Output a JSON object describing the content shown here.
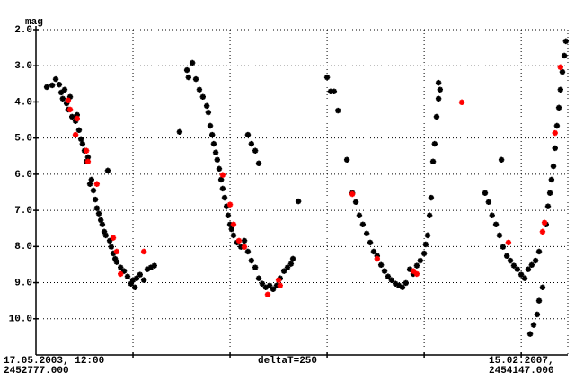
{
  "chart_data": {
    "type": "scatter",
    "y_label": "mag",
    "annotations": [
      "17.05.2003, 12:00",
      "2452777.000",
      "deltaT=250",
      "15.02.2007,",
      "2454147.000"
    ],
    "xlim": [
      2452777,
      2454147
    ],
    "xticks": [
      2453027,
      2453277,
      2453527,
      2453777,
      2454027
    ],
    "ylim": [
      11,
      2
    ],
    "yticks": [
      {
        "value": 2,
        "label": "2.0"
      },
      {
        "value": 3,
        "label": "3.0"
      },
      {
        "value": 4,
        "label": "4.0"
      },
      {
        "value": 5,
        "label": "5.0"
      },
      {
        "value": 6,
        "label": "6.0"
      },
      {
        "value": 7,
        "label": "7.0"
      },
      {
        "value": 8,
        "label": "8.0"
      },
      {
        "value": 9,
        "label": "9.0"
      },
      {
        "value": 10,
        "label": "10.0"
      }
    ],
    "grid": true,
    "series": [
      {
        "color": "#000000",
        "x": [
          2452805,
          2452819,
          2452828,
          2452837,
          2452842,
          2452846,
          2452851,
          2452856,
          2452860,
          2452865,
          2452870,
          2452879,
          2452883,
          2452888,
          2452893,
          2452897,
          2452902,
          2452907,
          2452911,
          2452916,
          2452920,
          2452925,
          2452930,
          2452934,
          2452939,
          2452944,
          2452948,
          2452953,
          2452957,
          2452962,
          2452967,
          2452971,
          2452976,
          2452981,
          2452985,
          2452995,
          2453004,
          2453013,
          2453022,
          2453027,
          2453032,
          2453036,
          2453045,
          2453055,
          2453064,
          2453073,
          2453082,
          2453147,
          2453166,
          2453170,
          2453180,
          2453189,
          2453198,
          2453207,
          2453217,
          2453221,
          2453226,
          2453231,
          2453235,
          2453240,
          2453244,
          2453249,
          2453254,
          2453258,
          2453263,
          2453268,
          2453272,
          2453277,
          2453281,
          2453286,
          2453295,
          2453305,
          2453314,
          2453323,
          2453332,
          2453342,
          2453351,
          2453323,
          2453332,
          2453342,
          2453351,
          2453360,
          2453369,
          2453379,
          2453388,
          2453397,
          2453406,
          2453416,
          2453425,
          2453434,
          2453439,
          2453453,
          2453527,
          2453536,
          2453545,
          2453555,
          2453578,
          2453592,
          2453601,
          2453610,
          2453619,
          2453629,
          2453638,
          2453647,
          2453656,
          2453666,
          2453675,
          2453684,
          2453693,
          2453703,
          2453712,
          2453721,
          2453730,
          2453740,
          2453749,
          2453758,
          2453767,
          2453777,
          2453781,
          2453786,
          2453791,
          2453795,
          2453800,
          2453804,
          2453809,
          2453814,
          2453818,
          2453814,
          2453934,
          2453943,
          2453952,
          2453962,
          2453971,
          2453976,
          2453980,
          2453990,
          2453999,
          2454008,
          2454017,
          2454027,
          2454036,
          2454045,
          2454054,
          2454064,
          2454073,
          2454082,
          2454073,
          2454068,
          2454059,
          2454050,
          2454091,
          2454096,
          2454101,
          2454105,
          2454110,
          2454114,
          2454119,
          2454124,
          2454128,
          2454133,
          2454138,
          2454142
        ],
        "values": [
          3.59,
          3.54,
          3.37,
          3.52,
          3.74,
          3.91,
          3.66,
          4.04,
          4.21,
          3.86,
          4.41,
          4.53,
          4.36,
          4.78,
          5.03,
          5.16,
          5.35,
          5.65,
          5.53,
          6.27,
          6.15,
          6.45,
          6.7,
          6.94,
          7.09,
          7.27,
          7.39,
          7.59,
          7.69,
          5.9,
          7.84,
          8.01,
          8.19,
          8.34,
          8.43,
          8.58,
          8.68,
          8.83,
          9.03,
          8.93,
          9.13,
          8.88,
          8.78,
          8.93,
          8.63,
          8.58,
          8.53,
          4.83,
          3.12,
          3.32,
          2.92,
          3.37,
          3.66,
          3.86,
          4.11,
          4.29,
          4.66,
          4.91,
          5.16,
          5.4,
          5.6,
          5.85,
          6.15,
          6.4,
          6.65,
          6.89,
          7.14,
          7.39,
          7.52,
          7.69,
          7.89,
          8.01,
          7.84,
          4.91,
          5.16,
          5.35,
          5.7,
          8.14,
          8.39,
          8.58,
          8.88,
          9.03,
          9.13,
          9.08,
          9.18,
          9.08,
          8.88,
          8.68,
          8.58,
          8.48,
          8.34,
          6.75,
          3.32,
          3.71,
          3.71,
          4.24,
          5.6,
          6.52,
          6.77,
          7.14,
          7.39,
          7.64,
          7.89,
          8.14,
          8.26,
          8.51,
          8.68,
          8.83,
          8.93,
          9.03,
          9.08,
          9.13,
          9.01,
          8.63,
          8.76,
          8.53,
          8.39,
          8.19,
          7.94,
          7.69,
          7.14,
          6.65,
          5.65,
          5.16,
          4.41,
          3.91,
          3.66,
          3.47,
          6.52,
          6.77,
          7.14,
          7.39,
          7.69,
          5.6,
          8.01,
          8.26,
          8.39,
          8.53,
          8.63,
          8.78,
          8.88,
          8.63,
          8.51,
          8.39,
          8.14,
          9.13,
          9.5,
          9.88,
          10.17,
          10.42,
          7.39,
          6.89,
          6.52,
          6.15,
          5.78,
          5.28,
          4.66,
          4.16,
          3.66,
          3.17,
          2.72,
          2.32
        ]
      },
      {
        "color": "#ff0000",
        "x": [
          2452860,
          2452865,
          2452879,
          2452883,
          2452907,
          2452911,
          2452934,
          2452976,
          2452985,
          2452995,
          2453055,
          2453258,
          2453277,
          2453286,
          2453300,
          2453314,
          2453374,
          2453406,
          2453402,
          2453592,
          2453656,
          2453749,
          2453758,
          2453874,
          2453994,
          2454082,
          2454087,
          2454114,
          2454128
        ],
        "values": [
          3.96,
          4.21,
          4.91,
          4.46,
          5.35,
          5.65,
          6.27,
          7.76,
          8.14,
          8.76,
          8.14,
          6.02,
          6.84,
          7.39,
          7.84,
          8.01,
          9.33,
          9.08,
          8.93,
          6.55,
          8.34,
          8.68,
          8.76,
          4.01,
          7.89,
          7.59,
          7.34,
          4.86,
          3.04
        ]
      }
    ]
  }
}
